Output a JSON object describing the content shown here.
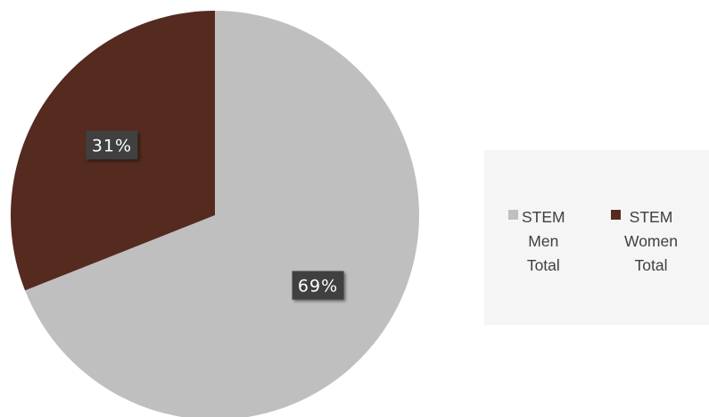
{
  "chart_data": {
    "type": "pie",
    "title": "",
    "categories": [
      "STEM Men Total",
      "STEM Women Total"
    ],
    "values": [
      69,
      31
    ],
    "unit": "%",
    "data_labels": [
      "69%",
      "31%"
    ],
    "colors": [
      "#bfbfbf",
      "#552a1f"
    ],
    "start_angle_deg": 0,
    "direction": "clockwise",
    "legend_position": "right",
    "legend": [
      {
        "label": "STEM\nMen\nTotal",
        "color": "#bfbfbf"
      },
      {
        "label": "STEM\nWomen\nTotal",
        "color": "#552a1f"
      }
    ]
  }
}
